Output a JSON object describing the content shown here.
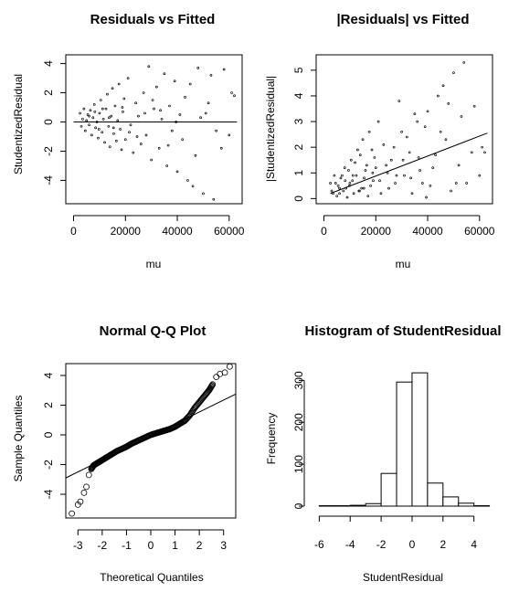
{
  "chart_data": [
    {
      "id": "rvf",
      "type": "scatter",
      "title": "Residuals vs Fitted",
      "xlabel": "mu",
      "ylabel": "StudentizedResidual",
      "xlim": [
        -3000,
        65000
      ],
      "ylim": [
        -5.6,
        4.6
      ],
      "xticks": [
        0,
        20000,
        40000,
        60000
      ],
      "yticks": [
        -4,
        -2,
        0,
        2,
        4
      ],
      "reference_line": [
        [
          0,
          0
        ],
        [
          63000,
          0
        ]
      ],
      "points": [
        [
          2500,
          0.6
        ],
        [
          3000,
          -0.3
        ],
        [
          3500,
          0.2
        ],
        [
          4000,
          0.9
        ],
        [
          4500,
          -0.6
        ],
        [
          5000,
          0.1
        ],
        [
          5500,
          0.5
        ],
        [
          6000,
          -0.2
        ],
        [
          6500,
          0.8
        ],
        [
          7000,
          -0.9
        ],
        [
          7500,
          0.3
        ],
        [
          8000,
          1.2
        ],
        [
          8500,
          -0.4
        ],
        [
          9000,
          0.0
        ],
        [
          9500,
          -1.1
        ],
        [
          10000,
          0.6
        ],
        [
          10500,
          1.5
        ],
        [
          11000,
          -0.7
        ],
        [
          11500,
          0.2
        ],
        [
          12000,
          -1.4
        ],
        [
          12500,
          0.9
        ],
        [
          13000,
          1.9
        ],
        [
          13500,
          -0.3
        ],
        [
          14000,
          -1.7
        ],
        [
          14500,
          0.4
        ],
        [
          15000,
          2.3
        ],
        [
          15500,
          -0.8
        ],
        [
          16000,
          1.1
        ],
        [
          16500,
          -1.3
        ],
        [
          17000,
          0.1
        ],
        [
          17500,
          2.6
        ],
        [
          18000,
          -0.5
        ],
        [
          18500,
          -1.9
        ],
        [
          19000,
          0.7
        ],
        [
          19500,
          1.6
        ],
        [
          20000,
          -1.2
        ],
        [
          21000,
          3.0
        ],
        [
          22000,
          -0.2
        ],
        [
          23000,
          -2.1
        ],
        [
          24000,
          1.3
        ],
        [
          25000,
          0.4
        ],
        [
          26000,
          -1.5
        ],
        [
          27000,
          2.0
        ],
        [
          28000,
          -0.9
        ],
        [
          29000,
          3.8
        ],
        [
          30000,
          -2.6
        ],
        [
          31000,
          0.9
        ],
        [
          32000,
          2.4
        ],
        [
          33000,
          -1.8
        ],
        [
          34000,
          0.2
        ],
        [
          35000,
          3.3
        ],
        [
          36000,
          -3.0
        ],
        [
          37000,
          1.1
        ],
        [
          38000,
          -0.6
        ],
        [
          39000,
          2.8
        ],
        [
          40000,
          -3.4
        ],
        [
          41000,
          0.5
        ],
        [
          42000,
          -1.2
        ],
        [
          44000,
          -4.0
        ],
        [
          45000,
          2.6
        ],
        [
          46000,
          -4.4
        ],
        [
          48000,
          3.7
        ],
        [
          49000,
          0.3
        ],
        [
          50000,
          -4.9
        ],
        [
          52000,
          1.3
        ],
        [
          53000,
          3.2
        ],
        [
          54000,
          -5.3
        ],
        [
          55000,
          -0.6
        ],
        [
          57000,
          -1.8
        ],
        [
          58000,
          3.6
        ],
        [
          60000,
          -0.9
        ],
        [
          61000,
          2.0
        ],
        [
          62000,
          1.8
        ],
        [
          6000,
          0.4
        ],
        [
          8200,
          0.7
        ],
        [
          9800,
          -0.5
        ],
        [
          11200,
          0.9
        ],
        [
          13700,
          0.3
        ],
        [
          15400,
          -0.4
        ],
        [
          18800,
          1.0
        ],
        [
          21500,
          -0.7
        ],
        [
          24500,
          -1.0
        ],
        [
          27500,
          0.6
        ],
        [
          30500,
          1.5
        ],
        [
          33500,
          0.8
        ],
        [
          36500,
          -1.6
        ],
        [
          39500,
          0.0
        ],
        [
          43000,
          1.7
        ],
        [
          47000,
          -2.3
        ],
        [
          51000,
          0.6
        ]
      ]
    },
    {
      "id": "absrvf",
      "type": "scatter",
      "title": "|Residuals| vs Fitted",
      "xlabel": "mu",
      "ylabel": "|StudentizedResidual|",
      "xlim": [
        -3000,
        65000
      ],
      "ylim": [
        -0.2,
        5.6
      ],
      "xticks": [
        0,
        20000,
        40000,
        60000
      ],
      "yticks": [
        0,
        1,
        2,
        3,
        4,
        5
      ],
      "reference_line": [
        [
          2500,
          0.2
        ],
        [
          63000,
          2.55
        ]
      ],
      "points": [
        [
          2500,
          0.6
        ],
        [
          3000,
          0.3
        ],
        [
          3500,
          0.2
        ],
        [
          4000,
          0.9
        ],
        [
          4500,
          0.6
        ],
        [
          5000,
          0.1
        ],
        [
          5500,
          0.5
        ],
        [
          6000,
          0.2
        ],
        [
          6500,
          0.8
        ],
        [
          7000,
          0.9
        ],
        [
          7500,
          0.3
        ],
        [
          8000,
          1.2
        ],
        [
          8500,
          0.4
        ],
        [
          9000,
          0.05
        ],
        [
          9500,
          1.1
        ],
        [
          10000,
          0.6
        ],
        [
          10500,
          1.5
        ],
        [
          11000,
          0.7
        ],
        [
          11500,
          0.2
        ],
        [
          12000,
          1.4
        ],
        [
          12500,
          0.9
        ],
        [
          13000,
          1.9
        ],
        [
          13500,
          0.3
        ],
        [
          14000,
          1.7
        ],
        [
          14500,
          0.4
        ],
        [
          15000,
          2.3
        ],
        [
          15500,
          0.8
        ],
        [
          16000,
          1.1
        ],
        [
          16500,
          1.3
        ],
        [
          17000,
          0.1
        ],
        [
          17500,
          2.6
        ],
        [
          18000,
          0.5
        ],
        [
          18500,
          1.9
        ],
        [
          19000,
          0.7
        ],
        [
          19500,
          1.6
        ],
        [
          20000,
          1.2
        ],
        [
          21000,
          3.0
        ],
        [
          22000,
          0.2
        ],
        [
          23000,
          2.1
        ],
        [
          24000,
          1.3
        ],
        [
          25000,
          0.4
        ],
        [
          26000,
          1.5
        ],
        [
          27000,
          2.0
        ],
        [
          28000,
          0.9
        ],
        [
          29000,
          3.8
        ],
        [
          30000,
          2.6
        ],
        [
          31000,
          0.9
        ],
        [
          32000,
          2.4
        ],
        [
          33000,
          1.8
        ],
        [
          34000,
          0.2
        ],
        [
          35000,
          3.3
        ],
        [
          36000,
          3.0
        ],
        [
          37000,
          1.1
        ],
        [
          38000,
          0.6
        ],
        [
          39000,
          2.8
        ],
        [
          40000,
          3.4
        ],
        [
          41000,
          0.5
        ],
        [
          42000,
          1.2
        ],
        [
          44000,
          4.0
        ],
        [
          45000,
          2.6
        ],
        [
          46000,
          4.4
        ],
        [
          48000,
          3.7
        ],
        [
          49000,
          0.3
        ],
        [
          50000,
          4.9
        ],
        [
          52000,
          1.3
        ],
        [
          53000,
          3.2
        ],
        [
          54000,
          5.3
        ],
        [
          55000,
          0.6
        ],
        [
          57000,
          1.8
        ],
        [
          58000,
          3.6
        ],
        [
          60000,
          0.9
        ],
        [
          61000,
          2.0
        ],
        [
          62000,
          1.8
        ],
        [
          6000,
          0.4
        ],
        [
          8200,
          0.7
        ],
        [
          9800,
          0.5
        ],
        [
          11200,
          0.9
        ],
        [
          13700,
          0.3
        ],
        [
          15400,
          0.4
        ],
        [
          18800,
          1.0
        ],
        [
          21500,
          0.7
        ],
        [
          24500,
          1.0
        ],
        [
          27500,
          0.6
        ],
        [
          30500,
          1.5
        ],
        [
          33500,
          0.8
        ],
        [
          36500,
          1.6
        ],
        [
          39500,
          0.05
        ],
        [
          43000,
          1.7
        ],
        [
          47000,
          2.3
        ],
        [
          51000,
          0.6
        ]
      ]
    },
    {
      "id": "qq",
      "type": "scatter",
      "title": "Normal Q-Q Plot",
      "xlabel": "Theoretical Quantiles",
      "ylabel": "Sample Quantiles",
      "xlim": [
        -3.5,
        3.5
      ],
      "ylim": [
        -5.6,
        4.8
      ],
      "xticks": [
        -3,
        -2,
        -1,
        0,
        1,
        2,
        3
      ],
      "yticks": [
        -4,
        -2,
        0,
        2,
        4
      ],
      "reference_line": [
        [
          -3.6,
          -2.9
        ],
        [
          3.6,
          2.75
        ]
      ],
      "points": [
        [
          -3.25,
          -5.3
        ],
        [
          -3.0,
          -4.7
        ],
        [
          -2.9,
          -4.5
        ],
        [
          -2.75,
          -3.9
        ],
        [
          -2.65,
          -3.5
        ],
        [
          -2.55,
          -2.7
        ],
        [
          -2.45,
          -2.3
        ],
        [
          -2.35,
          -2.05
        ],
        [
          -2.25,
          -1.95
        ],
        [
          -2.15,
          -1.85
        ],
        [
          -2.0,
          -1.7
        ],
        [
          -1.8,
          -1.5
        ],
        [
          -1.6,
          -1.3
        ],
        [
          -1.4,
          -1.1
        ],
        [
          -1.2,
          -0.95
        ],
        [
          -1.0,
          -0.8
        ],
        [
          -0.8,
          -0.6
        ],
        [
          -0.6,
          -0.45
        ],
        [
          -0.4,
          -0.3
        ],
        [
          -0.2,
          -0.15
        ],
        [
          0.0,
          0.0
        ],
        [
          0.2,
          0.1
        ],
        [
          0.4,
          0.2
        ],
        [
          0.6,
          0.3
        ],
        [
          0.8,
          0.4
        ],
        [
          1.0,
          0.55
        ],
        [
          1.2,
          0.75
        ],
        [
          1.4,
          0.95
        ],
        [
          1.6,
          1.3
        ],
        [
          1.8,
          1.8
        ],
        [
          2.0,
          2.2
        ],
        [
          2.2,
          2.6
        ],
        [
          2.4,
          3.0
        ],
        [
          2.55,
          3.4
        ],
        [
          2.7,
          3.9
        ],
        [
          2.85,
          4.1
        ],
        [
          3.05,
          4.2
        ],
        [
          3.25,
          4.6
        ]
      ]
    },
    {
      "id": "hist",
      "type": "bar",
      "title": "Histogram of StudentResidual",
      "xlabel": "StudentResidual",
      "ylabel": "Frequency",
      "xlim": [
        -6.2,
        5.2
      ],
      "ylim": [
        0,
        340
      ],
      "xticks": [
        -6,
        -4,
        -2,
        0,
        2,
        4
      ],
      "yticks": [
        0,
        100,
        200,
        300
      ],
      "bins": [
        [
          -6,
          -5
        ],
        [
          -5,
          -4
        ],
        [
          -4,
          -3
        ],
        [
          -3,
          -2
        ],
        [
          -2,
          -1
        ],
        [
          -1,
          0
        ],
        [
          0,
          1
        ],
        [
          1,
          2
        ],
        [
          2,
          3
        ],
        [
          3,
          4
        ],
        [
          4,
          5
        ]
      ],
      "values": [
        1,
        1,
        2,
        6,
        78,
        296,
        318,
        55,
        22,
        7,
        1
      ]
    }
  ]
}
